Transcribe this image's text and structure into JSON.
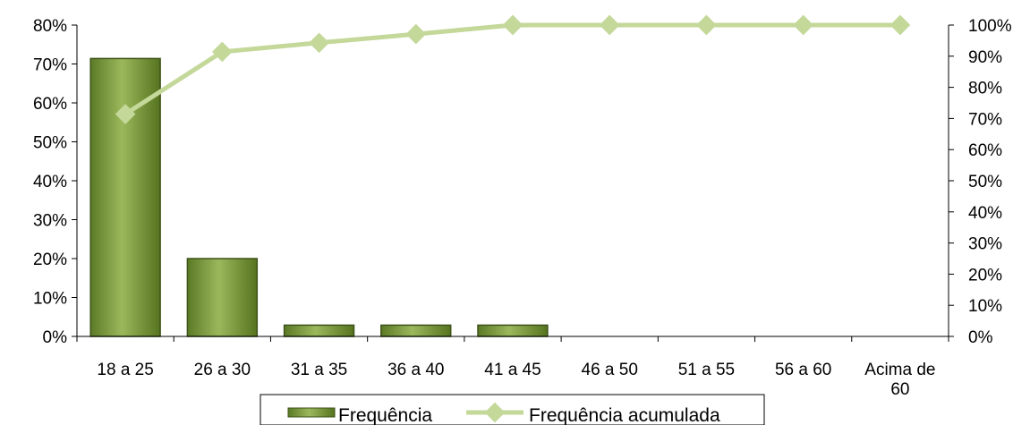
{
  "chart_data": {
    "type": "bar",
    "categories": [
      "18 a 25",
      "26 a 30",
      "31 a 35",
      "36 a 40",
      "41 a 45",
      "46 a 50",
      "51 a 55",
      "56 a 60",
      "Acima de 60"
    ],
    "series": [
      {
        "name": "Frequência",
        "type": "bar",
        "axis": "left",
        "values": [
          71.4,
          20.0,
          2.9,
          2.9,
          2.9,
          0,
          0,
          0,
          0
        ]
      },
      {
        "name": "Frequência acumulada",
        "type": "line",
        "axis": "right",
        "values": [
          71.4,
          91.4,
          94.3,
          97.1,
          100,
          100,
          100,
          100,
          100
        ]
      }
    ],
    "y_left": {
      "min": 0,
      "max": 80,
      "step": 10,
      "unit": "%"
    },
    "y_right": {
      "min": 0,
      "max": 100,
      "step": 10,
      "unit": "%"
    },
    "grid": false,
    "legend_position": "bottom",
    "colors": {
      "bar_fill": "#8aa84a",
      "bar_dark": "#4f6a22",
      "bar_border": "#3e5219",
      "line": "#c4d89a",
      "axis": "#000000"
    }
  }
}
